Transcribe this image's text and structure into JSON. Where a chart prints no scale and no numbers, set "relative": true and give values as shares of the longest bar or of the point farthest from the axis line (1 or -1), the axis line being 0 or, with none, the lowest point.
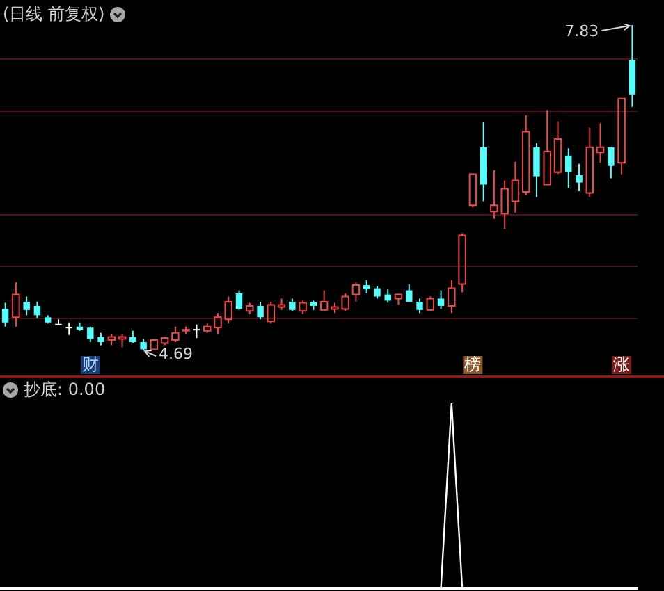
{
  "chart_data": [
    {
      "type": "candlestick",
      "title": "(日线 前复权)",
      "categories": [
        null,
        null,
        null,
        null,
        null,
        null,
        null,
        null,
        "财",
        null,
        null,
        null,
        null,
        null,
        null,
        null,
        null,
        null,
        null,
        null,
        null,
        null,
        null,
        null,
        null,
        null,
        null,
        null,
        null,
        null,
        null,
        null,
        null,
        null,
        null,
        null,
        null,
        null,
        null,
        null,
        null,
        null,
        null,
        null,
        "榜",
        null,
        null,
        null,
        null,
        null,
        null,
        null,
        null,
        null,
        null,
        null,
        null,
        null,
        "涨",
        null
      ],
      "ohlc": [
        [
          5.09,
          5.15,
          4.92,
          4.96
        ],
        [
          5.01,
          5.35,
          4.92,
          5.23
        ],
        [
          5.16,
          5.21,
          5.03,
          5.08
        ],
        [
          5.12,
          5.16,
          5.0,
          5.03
        ],
        [
          5.01,
          5.03,
          4.95,
          4.96
        ],
        [
          4.94,
          4.99,
          4.94,
          4.94
        ],
        [
          4.91,
          4.96,
          4.84,
          4.91
        ],
        [
          4.92,
          4.96,
          4.88,
          4.89
        ],
        [
          4.91,
          4.92,
          4.77,
          4.8
        ],
        [
          4.82,
          4.86,
          4.74,
          4.77
        ],
        [
          4.79,
          4.85,
          4.74,
          4.82
        ],
        [
          4.8,
          4.85,
          4.72,
          4.82
        ],
        [
          4.82,
          4.88,
          4.76,
          4.77
        ],
        [
          4.77,
          4.8,
          4.69,
          4.7
        ],
        [
          4.7,
          4.8,
          4.7,
          4.79
        ],
        [
          4.76,
          4.82,
          4.74,
          4.81
        ],
        [
          4.79,
          4.92,
          4.77,
          4.86
        ],
        [
          4.88,
          4.92,
          4.85,
          4.89
        ],
        [
          4.89,
          4.94,
          4.81,
          4.89
        ],
        [
          4.88,
          4.95,
          4.86,
          4.92
        ],
        [
          4.91,
          5.05,
          4.85,
          5.01
        ],
        [
          4.99,
          5.21,
          4.95,
          5.16
        ],
        [
          5.24,
          5.27,
          5.08,
          5.09
        ],
        [
          5.07,
          5.15,
          5.04,
          5.12
        ],
        [
          5.12,
          5.16,
          4.99,
          5.01
        ],
        [
          4.97,
          5.16,
          4.95,
          5.13
        ],
        [
          5.11,
          5.19,
          5.08,
          5.13
        ],
        [
          5.16,
          5.19,
          5.07,
          5.08
        ],
        [
          5.07,
          5.17,
          5.04,
          5.15
        ],
        [
          5.16,
          5.17,
          5.08,
          5.12
        ],
        [
          5.08,
          5.27,
          5.07,
          5.16
        ],
        [
          5.09,
          5.15,
          5.05,
          5.11
        ],
        [
          5.09,
          5.24,
          5.07,
          5.21
        ],
        [
          5.23,
          5.35,
          5.16,
          5.32
        ],
        [
          5.32,
          5.37,
          5.24,
          5.28
        ],
        [
          5.29,
          5.31,
          5.19,
          5.21
        ],
        [
          5.23,
          5.28,
          5.15,
          5.17
        ],
        [
          5.19,
          5.24,
          5.13,
          5.23
        ],
        [
          5.27,
          5.33,
          5.16,
          5.16
        ],
        [
          5.16,
          5.19,
          5.05,
          5.08
        ],
        [
          5.08,
          5.21,
          5.07,
          5.19
        ],
        [
          5.19,
          5.27,
          5.09,
          5.12
        ],
        [
          5.12,
          5.37,
          5.05,
          5.29
        ],
        [
          5.33,
          5.82,
          5.25,
          5.8
        ],
        [
          6.09,
          6.39,
          6.07,
          6.39
        ],
        [
          6.65,
          6.89,
          6.13,
          6.29
        ],
        [
          6.03,
          6.43,
          5.96,
          6.09
        ],
        [
          6.01,
          6.33,
          5.86,
          6.25
        ],
        [
          6.13,
          6.51,
          6.02,
          6.33
        ],
        [
          6.22,
          6.96,
          6.19,
          6.8
        ],
        [
          6.65,
          6.69,
          6.17,
          6.37
        ],
        [
          6.29,
          7.01,
          6.29,
          6.61
        ],
        [
          6.41,
          6.9,
          6.39,
          6.73
        ],
        [
          6.57,
          6.64,
          6.26,
          6.41
        ],
        [
          6.38,
          6.49,
          6.23,
          6.31
        ],
        [
          6.21,
          6.84,
          6.17,
          6.65
        ],
        [
          6.6,
          6.88,
          6.5,
          6.65
        ],
        [
          6.65,
          6.65,
          6.35,
          6.47
        ],
        [
          6.5,
          7.12,
          6.39,
          7.12
        ],
        [
          7.49,
          7.83,
          7.04,
          7.16
        ]
      ],
      "colors": [
        "#54fcfc",
        "#f04848",
        "#54fcfc",
        "#54fcfc",
        "#54fcfc",
        "#ffffff",
        "#ffffff",
        "#54fcfc",
        "#54fcfc",
        "#54fcfc",
        "#f04848",
        "#f04848",
        "#54fcfc",
        "#54fcfc",
        "#f04848",
        "#f04848",
        "#f04848",
        "#f04848",
        "#ffffff",
        "#f04848",
        "#f04848",
        "#f04848",
        "#54fcfc",
        "#f04848",
        "#54fcfc",
        "#f04848",
        "#f04848",
        "#54fcfc",
        "#f04848",
        "#54fcfc",
        "#f04848",
        "#f04848",
        "#f04848",
        "#f04848",
        "#54fcfc",
        "#54fcfc",
        "#54fcfc",
        "#f04848",
        "#54fcfc",
        "#54fcfc",
        "#f04848",
        "#54fcfc",
        "#f04848",
        "#f04848",
        "#f04848",
        "#54fcfc",
        "#f04848",
        "#f04848",
        "#f04848",
        "#f04848",
        "#54fcfc",
        "#f04848",
        "#f04848",
        "#54fcfc",
        "#54fcfc",
        "#f04848",
        "#f04848",
        "#54fcfc",
        "#f04848",
        "#54fcfc"
      ],
      "annotations": [
        "7.83",
        "4.69"
      ],
      "yticks": [
        {
          "value": 5.0,
          "label": null
        },
        {
          "value": 5.5,
          "label": null
        },
        {
          "value": 6.0,
          "label": null
        },
        {
          "value": 7.0,
          "label": null
        },
        {
          "value": 7.5,
          "label": null
        }
      ],
      "grid": "y",
      "tick_labels": "x"
    },
    {
      "type": "line",
      "title": "抄底: 0.00",
      "categories": [
        null,
        null,
        null,
        null,
        null,
        null,
        null,
        null,
        null,
        null,
        null,
        null,
        null,
        null,
        null,
        null,
        null,
        null,
        null,
        null,
        null,
        null,
        null,
        null,
        null,
        null,
        null,
        null,
        null,
        null,
        null,
        null,
        null,
        null,
        null,
        null,
        null,
        null,
        null,
        null,
        null,
        null,
        null,
        null,
        null,
        null,
        null,
        null,
        null,
        null,
        null,
        null,
        null,
        null,
        null,
        null,
        null,
        null,
        null,
        null
      ],
      "series": [
        {
          "color": "#ffffff",
          "values": [
            0,
            0,
            0,
            0,
            0,
            0,
            0,
            0,
            0,
            0,
            0,
            0,
            0,
            0,
            0,
            0,
            0,
            0,
            0,
            0,
            0,
            0,
            0,
            0,
            0,
            0,
            0,
            0,
            0,
            0,
            0,
            0,
            0,
            0,
            0,
            0,
            0,
            0,
            0,
            0,
            0,
            0,
            1,
            0,
            0,
            0,
            0,
            0,
            0,
            0,
            0,
            0,
            0,
            0,
            0,
            0,
            0,
            0,
            0,
            0
          ]
        }
      ],
      "relative": true,
      "tick_labels": false
    }
  ]
}
